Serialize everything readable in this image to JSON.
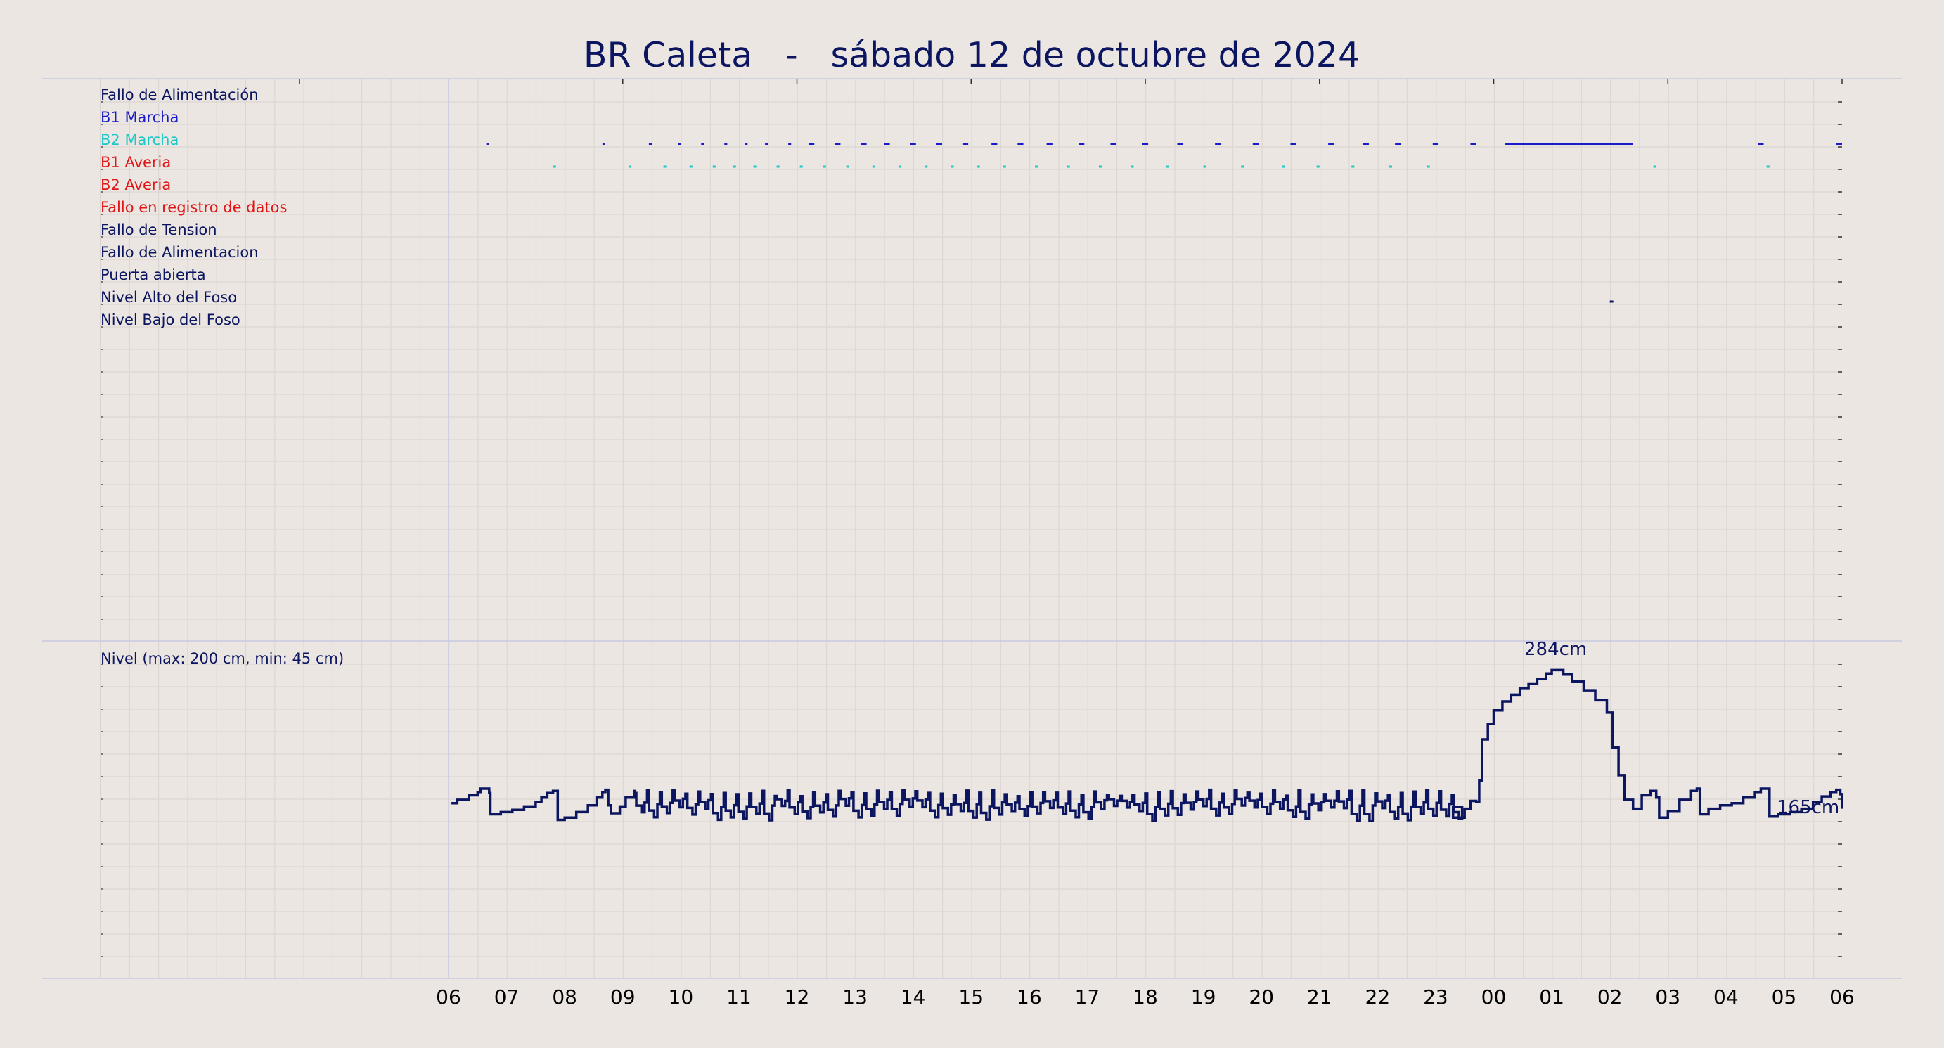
{
  "title": "BR Caleta   -   sábado 12 de octubre de 2024",
  "colors": {
    "background": "#ebe6e1",
    "grid": "#dcd7d3",
    "frame": "#c8c8e0",
    "title": "#0b1560",
    "level_line": "#0b1560"
  },
  "chart_data": [
    {
      "type": "event_timeline",
      "x_ticks": [
        "06",
        "07",
        "08",
        "09",
        "10",
        "11",
        "12",
        "13",
        "14",
        "15",
        "16",
        "17",
        "18",
        "19",
        "20",
        "21",
        "22",
        "23",
        "00",
        "01",
        "02",
        "03",
        "04",
        "05",
        "06"
      ],
      "x_range_hours": [
        0,
        24
      ],
      "signals": [
        {
          "label": "Fallo de Alimentación",
          "color": "#0b1560",
          "events": []
        },
        {
          "label": "B1 Marcha",
          "color": "#1a1ac8",
          "events": [
            [
              0.65,
              0.7
            ],
            [
              2.65,
              2.7
            ],
            [
              3.45,
              3.5
            ],
            [
              3.95,
              4.0
            ],
            [
              4.35,
              4.4
            ],
            [
              4.75,
              4.8
            ],
            [
              5.1,
              5.15
            ],
            [
              5.45,
              5.5
            ],
            [
              5.85,
              5.9
            ],
            [
              6.2,
              6.3
            ],
            [
              6.65,
              6.75
            ],
            [
              7.1,
              7.2
            ],
            [
              7.5,
              7.6
            ],
            [
              7.95,
              8.05
            ],
            [
              8.4,
              8.5
            ],
            [
              8.85,
              8.95
            ],
            [
              9.35,
              9.45
            ],
            [
              9.8,
              9.9
            ],
            [
              10.3,
              10.4
            ],
            [
              10.85,
              10.95
            ],
            [
              11.4,
              11.5
            ],
            [
              11.95,
              12.05
            ],
            [
              12.55,
              12.65
            ],
            [
              13.2,
              13.3
            ],
            [
              13.85,
              13.95
            ],
            [
              14.5,
              14.6
            ],
            [
              15.15,
              15.25
            ],
            [
              15.75,
              15.85
            ],
            [
              16.3,
              16.4
            ],
            [
              16.95,
              17.05
            ],
            [
              17.6,
              17.7
            ],
            [
              18.2,
              20.4
            ],
            [
              22.55,
              22.65
            ],
            [
              23.9,
              24.0
            ]
          ]
        },
        {
          "label": "B2 Marcha",
          "color": "#1bc8c8",
          "events": [
            [
              1.8,
              1.85
            ],
            [
              3.1,
              3.15
            ],
            [
              3.7,
              3.75
            ],
            [
              4.15,
              4.2
            ],
            [
              4.55,
              4.6
            ],
            [
              4.9,
              4.95
            ],
            [
              5.25,
              5.3
            ],
            [
              5.65,
              5.7
            ],
            [
              6.05,
              6.1
            ],
            [
              6.45,
              6.5
            ],
            [
              6.85,
              6.9
            ],
            [
              7.3,
              7.35
            ],
            [
              7.75,
              7.8
            ],
            [
              8.2,
              8.25
            ],
            [
              8.65,
              8.7
            ],
            [
              9.1,
              9.15
            ],
            [
              9.55,
              9.6
            ],
            [
              10.1,
              10.15
            ],
            [
              10.65,
              10.7
            ],
            [
              11.2,
              11.25
            ],
            [
              11.75,
              11.8
            ],
            [
              12.35,
              12.4
            ],
            [
              13.0,
              13.05
            ],
            [
              13.65,
              13.7
            ],
            [
              14.35,
              14.4
            ],
            [
              14.95,
              15.0
            ],
            [
              15.55,
              15.6
            ],
            [
              16.2,
              16.25
            ],
            [
              16.85,
              16.9
            ],
            [
              20.75,
              20.8
            ],
            [
              22.7,
              22.75
            ]
          ]
        },
        {
          "label": "B1 Averia",
          "color": "#e01616",
          "events": []
        },
        {
          "label": "B2 Averia",
          "color": "#e01616",
          "events": []
        },
        {
          "label": "Fallo en registro de datos",
          "color": "#e01616",
          "events": []
        },
        {
          "label": "Fallo de Tension",
          "color": "#0b1560",
          "events": []
        },
        {
          "label": "Fallo de Alimentacion",
          "color": "#0b1560",
          "events": []
        },
        {
          "label": "Puerta abierta",
          "color": "#0b1560",
          "events": [
            [
              20.0,
              20.06
            ]
          ]
        },
        {
          "label": "Nivel Alto del Foso",
          "color": "#0b1560",
          "events": []
        },
        {
          "label": "Nivel Bajo del Foso",
          "color": "#0b1560",
          "events": []
        }
      ]
    },
    {
      "type": "line",
      "label": "Nivel (max: 200 cm, min: 45 cm)",
      "unit": "cm",
      "annotations": [
        {
          "text": "284cm",
          "x": 19.0,
          "y": 284
        },
        {
          "text": "165cm",
          "x": 23.9,
          "y": 165
        }
      ],
      "keypoints": [
        [
          0.05,
          165
        ],
        [
          0.15,
          168
        ],
        [
          0.35,
          172
        ],
        [
          0.5,
          175
        ],
        [
          0.55,
          178
        ],
        [
          0.65,
          178
        ],
        [
          0.7,
          174
        ],
        [
          0.72,
          155
        ],
        [
          0.9,
          157
        ],
        [
          1.1,
          159
        ],
        [
          1.3,
          162
        ],
        [
          1.5,
          166
        ],
        [
          1.6,
          170
        ],
        [
          1.7,
          174
        ],
        [
          1.8,
          176
        ],
        [
          1.85,
          176
        ],
        [
          1.88,
          150
        ],
        [
          2.0,
          152
        ],
        [
          2.2,
          157
        ],
        [
          2.4,
          163
        ],
        [
          2.55,
          170
        ],
        [
          2.65,
          175
        ],
        [
          2.7,
          177
        ],
        [
          2.75,
          163
        ],
        [
          2.8,
          156
        ],
        [
          2.95,
          162
        ],
        [
          3.05,
          170
        ],
        [
          3.2,
          177
        ]
      ],
      "mid_oscillation": {
        "from": 3.2,
        "to": 17.3,
        "low": 149,
        "high": 177,
        "period_hours": 0.22
      },
      "tail_points": [
        [
          17.3,
          152
        ],
        [
          17.4,
          152
        ],
        [
          17.5,
          160
        ],
        [
          17.6,
          167
        ],
        [
          17.7,
          166
        ],
        [
          17.75,
          185
        ],
        [
          17.8,
          222
        ],
        [
          17.9,
          236
        ],
        [
          18.0,
          248
        ],
        [
          18.15,
          256
        ],
        [
          18.3,
          262
        ],
        [
          18.45,
          268
        ],
        [
          18.6,
          272
        ],
        [
          18.75,
          276
        ],
        [
          18.9,
          281
        ],
        [
          19.0,
          284
        ],
        [
          19.1,
          284
        ],
        [
          19.2,
          280
        ],
        [
          19.35,
          274
        ],
        [
          19.55,
          266
        ],
        [
          19.75,
          257
        ],
        [
          19.95,
          246
        ],
        [
          20.05,
          215
        ],
        [
          20.15,
          190
        ],
        [
          20.25,
          168
        ],
        [
          20.4,
          160
        ],
        [
          20.55,
          172
        ],
        [
          20.7,
          176
        ],
        [
          20.8,
          170
        ],
        [
          20.85,
          152
        ],
        [
          21.0,
          158
        ],
        [
          21.2,
          168
        ],
        [
          21.4,
          176
        ],
        [
          21.5,
          178
        ],
        [
          21.55,
          155
        ],
        [
          21.7,
          160
        ],
        [
          21.9,
          163
        ],
        [
          22.1,
          165
        ],
        [
          22.3,
          170
        ],
        [
          22.5,
          175
        ],
        [
          22.6,
          178
        ],
        [
          22.7,
          178
        ],
        [
          22.75,
          153
        ],
        [
          22.9,
          155
        ],
        [
          23.1,
          157
        ],
        [
          23.3,
          160
        ],
        [
          23.5,
          166
        ],
        [
          23.65,
          171
        ],
        [
          23.8,
          175
        ],
        [
          23.9,
          177
        ],
        [
          23.97,
          173
        ],
        [
          24.0,
          160
        ]
      ]
    }
  ]
}
